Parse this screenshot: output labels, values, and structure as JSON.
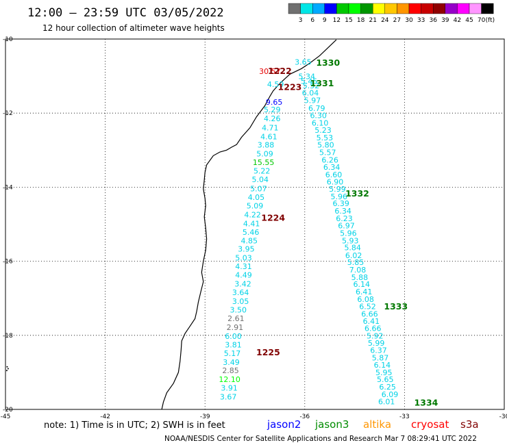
{
  "header": {
    "title": "12:00 – 23:59 UTC 03/05/2022",
    "subtitle": "12 hour collection of altimeter wave heights"
  },
  "colorbar": {
    "labels": [
      "3",
      "6",
      "9",
      "12",
      "15",
      "18",
      "21",
      "24",
      "27",
      "30",
      "33",
      "36",
      "39",
      "42",
      "45",
      "70"
    ],
    "unit": "(ft)",
    "colors": [
      "#707070",
      "#00e6e6",
      "#00aaff",
      "#0000ff",
      "#00c800",
      "#00ff00",
      "#009600",
      "#ffff00",
      "#ffc800",
      "#ff9600",
      "#ff0000",
      "#c80000",
      "#900000",
      "#9600c8",
      "#ff00ff",
      "#ff96ff",
      "#000000"
    ]
  },
  "chart_data": {
    "type": "scatter",
    "xlim": [
      -45,
      -30
    ],
    "ylim": [
      -20,
      -10
    ],
    "xticks": [
      "-45",
      "-42",
      "-39",
      "-36",
      "-33",
      "-30"
    ],
    "yticks": [
      "-10",
      "-12",
      "-14",
      "-16",
      "-18",
      "-20"
    ],
    "grid": true,
    "pass_a": [
      {
        "lon": -36.05,
        "lat": -10.62,
        "t": "3.65",
        "c": "#00d2e6"
      },
      {
        "lon": -37.05,
        "lat": -10.87,
        "t": "30.57",
        "c": "#e60000"
      },
      {
        "lon": -35.94,
        "lat": -11.01,
        "t": "5.34",
        "c": "#00d2e6"
      },
      {
        "lon": -35.87,
        "lat": -11.14,
        "t": "5.45",
        "c": "#00d2e6"
      },
      {
        "lon": -36.88,
        "lat": -11.22,
        "t": "4.59",
        "c": "#00d2e6"
      },
      {
        "lon": -35.81,
        "lat": -11.26,
        "t": "5.52",
        "c": "#00d2e6"
      },
      {
        "lon": -35.83,
        "lat": -11.45,
        "t": "6.04",
        "c": "#00d2e6"
      },
      {
        "lon": -35.77,
        "lat": -11.65,
        "t": "5.97",
        "c": "#00d2e6"
      },
      {
        "lon": -36.92,
        "lat": -11.7,
        "t": "9.65",
        "c": "#0000ff"
      },
      {
        "lon": -35.64,
        "lat": -11.87,
        "t": "6.79",
        "c": "#00d2e6"
      },
      {
        "lon": -36.98,
        "lat": -11.9,
        "t": "5.29",
        "c": "#00d2e6"
      },
      {
        "lon": -35.59,
        "lat": -12.06,
        "t": "6.30",
        "c": "#00d2e6"
      },
      {
        "lon": -36.98,
        "lat": -12.14,
        "t": "4.26",
        "c": "#00d2e6"
      },
      {
        "lon": -35.54,
        "lat": -12.26,
        "t": "6.10",
        "c": "#00d2e6"
      },
      {
        "lon": -37.04,
        "lat": -12.39,
        "t": "4.71",
        "c": "#00d2e6"
      },
      {
        "lon": -35.45,
        "lat": -12.46,
        "t": "5.23",
        "c": "#00d2e6"
      },
      {
        "lon": -37.08,
        "lat": -12.63,
        "t": "4.61",
        "c": "#00d2e6"
      },
      {
        "lon": -35.4,
        "lat": -12.66,
        "t": "5.53",
        "c": "#00d2e6"
      },
      {
        "lon": -35.37,
        "lat": -12.86,
        "t": "5.80",
        "c": "#00d2e6"
      },
      {
        "lon": -37.17,
        "lat": -12.86,
        "t": "3.88",
        "c": "#00d2e6"
      },
      {
        "lon": -35.31,
        "lat": -13.06,
        "t": "5.57",
        "c": "#00d2e6"
      },
      {
        "lon": -37.2,
        "lat": -13.1,
        "t": "5.09",
        "c": "#00d2e6"
      },
      {
        "lon": -35.24,
        "lat": -13.26,
        "t": "6.26",
        "c": "#00d2e6"
      },
      {
        "lon": -37.24,
        "lat": -13.33,
        "t": "15.55",
        "c": "#00c800"
      },
      {
        "lon": -35.19,
        "lat": -13.46,
        "t": "6.34",
        "c": "#00d2e6"
      },
      {
        "lon": -37.29,
        "lat": -13.56,
        "t": "5.22",
        "c": "#00d2e6"
      },
      {
        "lon": -35.13,
        "lat": -13.66,
        "t": "6.60",
        "c": "#00d2e6"
      },
      {
        "lon": -37.34,
        "lat": -13.79,
        "t": "5.04",
        "c": "#00d2e6"
      },
      {
        "lon": -35.09,
        "lat": -13.85,
        "t": "6.90",
        "c": "#00d2e6"
      },
      {
        "lon": -35.02,
        "lat": -14.05,
        "t": "5.99",
        "c": "#00d2e6"
      },
      {
        "lon": -37.39,
        "lat": -14.04,
        "t": "5.07",
        "c": "#00d2e6"
      },
      {
        "lon": -34.97,
        "lat": -14.25,
        "t": "5.96",
        "c": "#00d2e6"
      },
      {
        "lon": -37.46,
        "lat": -14.27,
        "t": "4.05",
        "c": "#00d2e6"
      },
      {
        "lon": -34.91,
        "lat": -14.44,
        "t": "6.39",
        "c": "#00d2e6"
      },
      {
        "lon": -37.5,
        "lat": -14.5,
        "t": "5.09",
        "c": "#00d2e6"
      },
      {
        "lon": -34.85,
        "lat": -14.64,
        "t": "6.34",
        "c": "#00d2e6"
      },
      {
        "lon": -37.57,
        "lat": -14.74,
        "t": "4.22",
        "c": "#00d2e6"
      },
      {
        "lon": -34.81,
        "lat": -14.84,
        "t": "6.23",
        "c": "#00d2e6"
      },
      {
        "lon": -37.6,
        "lat": -14.98,
        "t": "4.41",
        "c": "#00d2e6"
      },
      {
        "lon": -34.75,
        "lat": -15.04,
        "t": "6.97",
        "c": "#00d2e6"
      },
      {
        "lon": -37.62,
        "lat": -15.21,
        "t": "5.46",
        "c": "#00d2e6"
      },
      {
        "lon": -34.69,
        "lat": -15.24,
        "t": "5.96",
        "c": "#00d2e6"
      },
      {
        "lon": -34.63,
        "lat": -15.44,
        "t": "5.93",
        "c": "#00d2e6"
      },
      {
        "lon": -37.67,
        "lat": -15.44,
        "t": "4.85",
        "c": "#00d2e6"
      },
      {
        "lon": -34.56,
        "lat": -15.63,
        "t": "5.84",
        "c": "#00d2e6"
      },
      {
        "lon": -37.76,
        "lat": -15.67,
        "t": "3.95",
        "c": "#00d2e6"
      },
      {
        "lon": -34.53,
        "lat": -15.84,
        "t": "6.02",
        "c": "#00d2e6"
      },
      {
        "lon": -37.84,
        "lat": -15.91,
        "t": "5.03",
        "c": "#00d2e6"
      },
      {
        "lon": -34.47,
        "lat": -16.03,
        "t": "5.85",
        "c": "#00d2e6"
      },
      {
        "lon": -37.84,
        "lat": -16.14,
        "t": "4.31",
        "c": "#00d2e6"
      },
      {
        "lon": -34.41,
        "lat": -16.23,
        "t": "7.08",
        "c": "#00d2e6"
      },
      {
        "lon": -37.84,
        "lat": -16.37,
        "t": "4.49",
        "c": "#00d2e6"
      },
      {
        "lon": -34.35,
        "lat": -16.43,
        "t": "5.88",
        "c": "#00d2e6"
      },
      {
        "lon": -37.86,
        "lat": -16.61,
        "t": "3.42",
        "c": "#00d2e6"
      },
      {
        "lon": -34.29,
        "lat": -16.62,
        "t": "6.14",
        "c": "#00d2e6"
      },
      {
        "lon": -34.22,
        "lat": -16.82,
        "t": "6.41",
        "c": "#00d2e6"
      },
      {
        "lon": -37.93,
        "lat": -16.84,
        "t": "3.64",
        "c": "#00d2e6"
      },
      {
        "lon": -34.17,
        "lat": -17.02,
        "t": "6.08",
        "c": "#00d2e6"
      },
      {
        "lon": -37.93,
        "lat": -17.08,
        "t": "3.05",
        "c": "#00d2e6"
      },
      {
        "lon": -34.11,
        "lat": -17.22,
        "t": "6.52",
        "c": "#00d2e6"
      },
      {
        "lon": -38.0,
        "lat": -17.31,
        "t": "3.50",
        "c": "#00d2e6"
      },
      {
        "lon": -34.05,
        "lat": -17.42,
        "t": "6.66",
        "c": "#00d2e6"
      },
      {
        "lon": -38.07,
        "lat": -17.54,
        "t": "2.61",
        "c": "#707070"
      },
      {
        "lon": -34.0,
        "lat": -17.62,
        "t": "6.41",
        "c": "#00d2e6"
      },
      {
        "lon": -38.1,
        "lat": -17.78,
        "t": "2.91",
        "c": "#707070"
      },
      {
        "lon": -33.95,
        "lat": -17.81,
        "t": "6.66",
        "c": "#00d2e6"
      },
      {
        "lon": -33.89,
        "lat": -18.01,
        "t": "5.92",
        "c": "#00d2e6"
      },
      {
        "lon": -38.15,
        "lat": -18.02,
        "t": "6.00",
        "c": "#00d2e6"
      },
      {
        "lon": -33.85,
        "lat": -18.21,
        "t": "5.99",
        "c": "#00d2e6"
      },
      {
        "lon": -38.15,
        "lat": -18.25,
        "t": "3.81",
        "c": "#00d2e6"
      },
      {
        "lon": -33.78,
        "lat": -18.4,
        "t": "6.37",
        "c": "#00d2e6"
      },
      {
        "lon": -38.18,
        "lat": -18.48,
        "t": "5.17",
        "c": "#00d2e6"
      },
      {
        "lon": -33.73,
        "lat": -18.6,
        "t": "5.87",
        "c": "#00d2e6"
      },
      {
        "lon": -38.21,
        "lat": -18.72,
        "t": "3.49",
        "c": "#00d2e6"
      },
      {
        "lon": -33.67,
        "lat": -18.8,
        "t": "6.14",
        "c": "#00d2e6"
      },
      {
        "lon": -38.23,
        "lat": -18.95,
        "t": "2.85",
        "c": "#707070"
      },
      {
        "lon": -33.62,
        "lat": -19.0,
        "t": "5.95",
        "c": "#00d2e6"
      },
      {
        "lon": -38.26,
        "lat": -19.19,
        "t": "12.10",
        "c": "#00ff00"
      },
      {
        "lon": -33.58,
        "lat": -19.19,
        "t": "5.65",
        "c": "#00d2e6"
      },
      {
        "lon": -33.51,
        "lat": -19.39,
        "t": "6.25",
        "c": "#00d2e6"
      },
      {
        "lon": -38.27,
        "lat": -19.42,
        "t": "3.91",
        "c": "#00d2e6"
      },
      {
        "lon": -33.44,
        "lat": -19.59,
        "t": "6.09",
        "c": "#00d2e6"
      },
      {
        "lon": -38.3,
        "lat": -19.66,
        "t": "3.67",
        "c": "#00d2e6"
      },
      {
        "lon": -33.54,
        "lat": -19.79,
        "t": "6.01",
        "c": "#00d2e6"
      }
    ],
    "time_labels": [
      {
        "lon": -36.75,
        "lat": -10.87,
        "t": "1222",
        "c": "#800000"
      },
      {
        "lon": -36.45,
        "lat": -11.3,
        "t": "1223",
        "c": "#800000"
      },
      {
        "lon": -36.95,
        "lat": -14.83,
        "t": "1224",
        "c": "#800000"
      },
      {
        "lon": -37.1,
        "lat": -18.47,
        "t": "1225",
        "c": "#800000"
      },
      {
        "lon": -35.3,
        "lat": -10.65,
        "t": "1330",
        "c": "#007800"
      },
      {
        "lon": -35.48,
        "lat": -11.2,
        "t": "1331",
        "c": "#007800"
      },
      {
        "lon": -34.42,
        "lat": -14.18,
        "t": "1332",
        "c": "#007800"
      },
      {
        "lon": -33.26,
        "lat": -17.23,
        "t": "1333",
        "c": "#007800"
      },
      {
        "lon": -32.35,
        "lat": -19.82,
        "t": "1334",
        "c": "#007800"
      }
    ],
    "coastline": [
      [
        -35.05,
        -10.02
      ],
      [
        -35.2,
        -10.15
      ],
      [
        -35.55,
        -10.45
      ],
      [
        -35.85,
        -10.65
      ],
      [
        -36.1,
        -10.8
      ],
      [
        -36.45,
        -10.95
      ],
      [
        -36.75,
        -11.2
      ],
      [
        -36.95,
        -11.4
      ],
      [
        -37.05,
        -11.55
      ],
      [
        -37.2,
        -11.8
      ],
      [
        -37.45,
        -12.1
      ],
      [
        -37.65,
        -12.4
      ],
      [
        -37.9,
        -12.65
      ],
      [
        -38.05,
        -12.85
      ],
      [
        -38.2,
        -12.92
      ],
      [
        -38.35,
        -13.0
      ],
      [
        -38.55,
        -13.05
      ],
      [
        -38.75,
        -13.15
      ],
      [
        -38.95,
        -13.4
      ],
      [
        -39.0,
        -13.6
      ],
      [
        -39.02,
        -13.8
      ],
      [
        -39.05,
        -14.05
      ],
      [
        -39.0,
        -14.3
      ],
      [
        -38.98,
        -14.5
      ],
      [
        -39.02,
        -14.8
      ],
      [
        -38.98,
        -15.1
      ],
      [
        -38.95,
        -15.4
      ],
      [
        -38.98,
        -15.7
      ],
      [
        -39.05,
        -16.0
      ],
      [
        -39.1,
        -16.3
      ],
      [
        -39.05,
        -16.55
      ],
      [
        -39.12,
        -16.8
      ],
      [
        -39.2,
        -17.1
      ],
      [
        -39.25,
        -17.35
      ],
      [
        -39.3,
        -17.55
      ],
      [
        -39.45,
        -17.75
      ],
      [
        -39.6,
        -17.95
      ],
      [
        -39.7,
        -18.15
      ],
      [
        -39.72,
        -18.4
      ],
      [
        -39.75,
        -18.7
      ],
      [
        -39.8,
        -19.0
      ],
      [
        -39.95,
        -19.3
      ],
      [
        -40.15,
        -19.55
      ],
      [
        -40.25,
        -19.8
      ],
      [
        -40.3,
        -20.0
      ]
    ],
    "point_marks": [
      [
        -44.95,
        -18.85
      ],
      [
        -44.92,
        -18.9
      ],
      [
        -44.96,
        -18.95
      ]
    ]
  },
  "footer": {
    "note": "note:  1) Time is in UTC;  2) SWH is in feet",
    "credit": "NOAA/NESDIS Center for Satellite Applications and Research     Mar  7 08:29:41 UTC 2022"
  },
  "legend": [
    {
      "name": "jason2",
      "color": "#0000ff"
    },
    {
      "name": "jason3",
      "color": "#008c00"
    },
    {
      "name": "altika",
      "color": "#ff9600"
    },
    {
      "name": "cryosat",
      "color": "#ff0000"
    },
    {
      "name": "s3a",
      "color": "#800000"
    }
  ]
}
